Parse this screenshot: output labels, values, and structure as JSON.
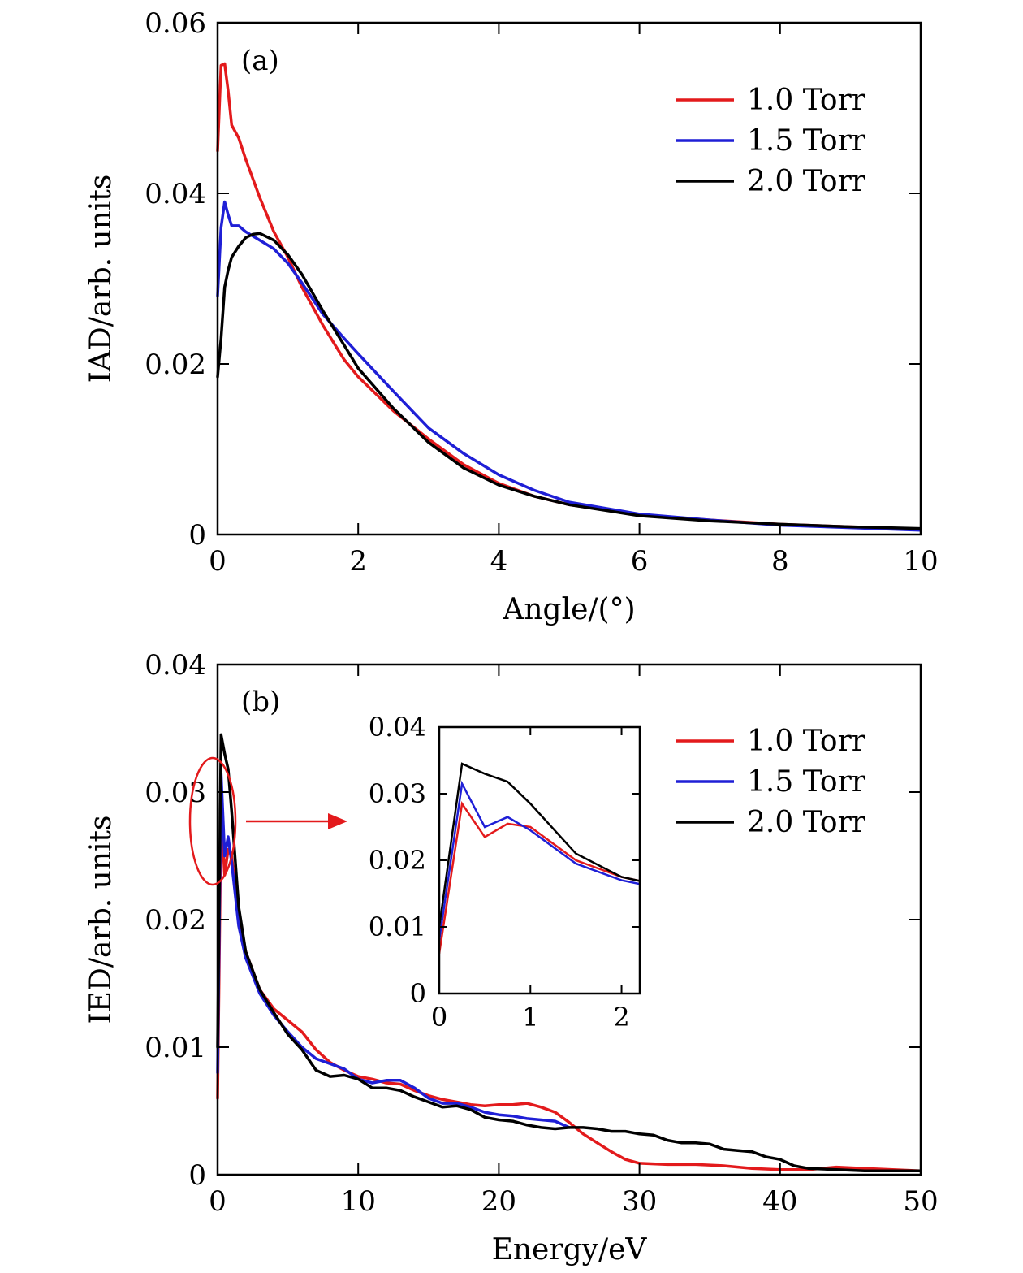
{
  "chart_data": [
    {
      "type": "line",
      "panel": "(a)",
      "xlabel": "Angle/(°)",
      "ylabel": "IAD/arb. units",
      "xlim": [
        0,
        10
      ],
      "ylim": [
        0,
        0.06
      ],
      "xticks": [
        0,
        2,
        4,
        6,
        8,
        10
      ],
      "xtick_labels": [
        "0",
        "2",
        "4",
        "6",
        "8",
        "10"
      ],
      "yticks": [
        0,
        0.02,
        0.04,
        0.06
      ],
      "ytick_labels": [
        "0",
        "0.02",
        "0.04",
        "0.06"
      ],
      "legend_position": "top-right",
      "series": [
        {
          "name": "1.0 Torr",
          "color": "#e31a1c",
          "points": [
            [
              0,
              0.045
            ],
            [
              0.05,
              0.055
            ],
            [
              0.1,
              0.0552
            ],
            [
              0.15,
              0.052
            ],
            [
              0.2,
              0.048
            ],
            [
              0.3,
              0.0465
            ],
            [
              0.4,
              0.044
            ],
            [
              0.6,
              0.0395
            ],
            [
              0.8,
              0.0355
            ],
            [
              1.0,
              0.0325
            ],
            [
              1.2,
              0.029
            ],
            [
              1.5,
              0.0245
            ],
            [
              1.8,
              0.0205
            ],
            [
              2.0,
              0.0185
            ],
            [
              2.5,
              0.0145
            ],
            [
              3.0,
              0.0112
            ],
            [
              3.5,
              0.0082
            ],
            [
              4.0,
              0.006
            ],
            [
              4.5,
              0.0045
            ],
            [
              5.0,
              0.0035
            ],
            [
              6.0,
              0.0023
            ],
            [
              7.0,
              0.0017
            ],
            [
              8.0,
              0.0012
            ],
            [
              9.0,
              0.0009
            ],
            [
              10.0,
              0.0006
            ]
          ]
        },
        {
          "name": "1.5 Torr",
          "color": "#1f1fd6",
          "points": [
            [
              0,
              0.028
            ],
            [
              0.05,
              0.036
            ],
            [
              0.1,
              0.039
            ],
            [
              0.15,
              0.0375
            ],
            [
              0.2,
              0.0362
            ],
            [
              0.3,
              0.0362
            ],
            [
              0.4,
              0.0355
            ],
            [
              0.6,
              0.0345
            ],
            [
              0.8,
              0.0335
            ],
            [
              1.0,
              0.0318
            ],
            [
              1.2,
              0.0295
            ],
            [
              1.5,
              0.0258
            ],
            [
              1.8,
              0.023
            ],
            [
              2.0,
              0.0212
            ],
            [
              2.5,
              0.0168
            ],
            [
              3.0,
              0.0125
            ],
            [
              3.5,
              0.0095
            ],
            [
              4.0,
              0.007
            ],
            [
              4.5,
              0.0052
            ],
            [
              5.0,
              0.0038
            ],
            [
              6.0,
              0.0024
            ],
            [
              7.0,
              0.0017
            ],
            [
              8.0,
              0.0011
            ],
            [
              9.0,
              0.0008
            ],
            [
              10.0,
              0.0005
            ]
          ]
        },
        {
          "name": "2.0 Torr",
          "color": "#000000",
          "points": [
            [
              0,
              0.0185
            ],
            [
              0.05,
              0.023
            ],
            [
              0.1,
              0.029
            ],
            [
              0.15,
              0.031
            ],
            [
              0.2,
              0.0325
            ],
            [
              0.3,
              0.0338
            ],
            [
              0.4,
              0.0348
            ],
            [
              0.5,
              0.0352
            ],
            [
              0.6,
              0.0353
            ],
            [
              0.8,
              0.0345
            ],
            [
              1.0,
              0.0328
            ],
            [
              1.2,
              0.0305
            ],
            [
              1.5,
              0.0262
            ],
            [
              1.8,
              0.0222
            ],
            [
              2.0,
              0.0195
            ],
            [
              2.5,
              0.0148
            ],
            [
              3.0,
              0.0108
            ],
            [
              3.5,
              0.0078
            ],
            [
              4.0,
              0.0058
            ],
            [
              4.5,
              0.0045
            ],
            [
              5.0,
              0.0035
            ],
            [
              6.0,
              0.0022
            ],
            [
              7.0,
              0.0016
            ],
            [
              8.0,
              0.0012
            ],
            [
              9.0,
              0.0009
            ],
            [
              10.0,
              0.0007
            ]
          ]
        }
      ]
    },
    {
      "type": "line",
      "panel": "(b)",
      "xlabel": "Energy/eV",
      "ylabel": "IED/arb. units",
      "xlim": [
        0,
        50
      ],
      "ylim": [
        0,
        0.04
      ],
      "xticks": [
        0,
        10,
        20,
        30,
        40,
        50
      ],
      "xtick_labels": [
        "0",
        "10",
        "20",
        "30",
        "40",
        "50"
      ],
      "yticks": [
        0,
        0.01,
        0.02,
        0.03,
        0.04
      ],
      "ytick_labels": [
        "0",
        "0.01",
        "0.02",
        "0.03",
        "0.04"
      ],
      "legend_position": "top-right",
      "series": [
        {
          "name": "1.0 Torr",
          "color": "#e31a1c",
          "points": [
            [
              0,
              0.006
            ],
            [
              0.25,
              0.0285
            ],
            [
              0.5,
              0.0235
            ],
            [
              0.75,
              0.0255
            ],
            [
              1,
              0.025
            ],
            [
              1.5,
              0.02
            ],
            [
              2,
              0.0175
            ],
            [
              3,
              0.0145
            ],
            [
              4,
              0.013
            ],
            [
              5,
              0.0121
            ],
            [
              6,
              0.0112
            ],
            [
              7,
              0.0098
            ],
            [
              8,
              0.0088
            ],
            [
              9,
              0.0082
            ],
            [
              10,
              0.0077
            ],
            [
              11,
              0.0075
            ],
            [
              12,
              0.0072
            ],
            [
              13,
              0.0071
            ],
            [
              14,
              0.0066
            ],
            [
              15,
              0.0062
            ],
            [
              16,
              0.0059
            ],
            [
              17,
              0.0057
            ],
            [
              18,
              0.0055
            ],
            [
              19,
              0.0054
            ],
            [
              20,
              0.0055
            ],
            [
              21,
              0.0055
            ],
            [
              22,
              0.0056
            ],
            [
              23,
              0.0053
            ],
            [
              24,
              0.0049
            ],
            [
              25,
              0.0041
            ],
            [
              26,
              0.0032
            ],
            [
              27,
              0.0025
            ],
            [
              28,
              0.0018
            ],
            [
              29,
              0.0012
            ],
            [
              30,
              0.0009
            ],
            [
              32,
              0.0008
            ],
            [
              34,
              0.0008
            ],
            [
              36,
              0.0007
            ],
            [
              38,
              0.0005
            ],
            [
              40,
              0.0004
            ],
            [
              42,
              0.0004
            ],
            [
              44,
              0.0006
            ],
            [
              46,
              0.0005
            ],
            [
              48,
              0.0004
            ],
            [
              50,
              0.0003
            ]
          ]
        },
        {
          "name": "1.5 Torr",
          "color": "#1f1fd6",
          "points": [
            [
              0,
              0.008
            ],
            [
              0.25,
              0.0315
            ],
            [
              0.5,
              0.025
            ],
            [
              0.75,
              0.0265
            ],
            [
              1,
              0.0245
            ],
            [
              1.5,
              0.0195
            ],
            [
              2,
              0.017
            ],
            [
              3,
              0.0142
            ],
            [
              4,
              0.0125
            ],
            [
              5,
              0.0112
            ],
            [
              6,
              0.01
            ],
            [
              7,
              0.0091
            ],
            [
              8,
              0.0087
            ],
            [
              9,
              0.0083
            ],
            [
              10,
              0.0075
            ],
            [
              11,
              0.0072
            ],
            [
              12,
              0.0074
            ],
            [
              13,
              0.0074
            ],
            [
              14,
              0.0068
            ],
            [
              15,
              0.006
            ],
            [
              16,
              0.0056
            ],
            [
              17,
              0.0056
            ],
            [
              18,
              0.0053
            ],
            [
              19,
              0.0049
            ],
            [
              20,
              0.0047
            ],
            [
              21,
              0.0046
            ],
            [
              22,
              0.0044
            ],
            [
              23,
              0.0043
            ],
            [
              24,
              0.0042
            ],
            [
              25,
              0.0037
            ]
          ]
        },
        {
          "name": "2.0 Torr",
          "color": "#000000",
          "points": [
            [
              0,
              0.01
            ],
            [
              0.25,
              0.0345
            ],
            [
              0.5,
              0.033
            ],
            [
              0.75,
              0.0318
            ],
            [
              1,
              0.0285
            ],
            [
              1.5,
              0.021
            ],
            [
              2,
              0.0175
            ],
            [
              3,
              0.0145
            ],
            [
              4,
              0.0127
            ],
            [
              5,
              0.011
            ],
            [
              6,
              0.0098
            ],
            [
              7,
              0.0082
            ],
            [
              8,
              0.0077
            ],
            [
              9,
              0.0078
            ],
            [
              10,
              0.0075
            ],
            [
              11,
              0.0068
            ],
            [
              12,
              0.0068
            ],
            [
              13,
              0.0066
            ],
            [
              14,
              0.0061
            ],
            [
              15,
              0.0057
            ],
            [
              16,
              0.0053
            ],
            [
              17,
              0.0054
            ],
            [
              18,
              0.0051
            ],
            [
              19,
              0.0045
            ],
            [
              20,
              0.0043
            ],
            [
              21,
              0.0042
            ],
            [
              22,
              0.0039
            ],
            [
              23,
              0.0037
            ],
            [
              24,
              0.0036
            ],
            [
              25,
              0.0037
            ],
            [
              26,
              0.0037
            ],
            [
              27,
              0.0036
            ],
            [
              28,
              0.0034
            ],
            [
              29,
              0.0034
            ],
            [
              30,
              0.0032
            ],
            [
              31,
              0.0031
            ],
            [
              32,
              0.0027
            ],
            [
              33,
              0.0025
            ],
            [
              34,
              0.0025
            ],
            [
              35,
              0.0024
            ],
            [
              36,
              0.002
            ],
            [
              37,
              0.0019
            ],
            [
              38,
              0.0018
            ],
            [
              39,
              0.0014
            ],
            [
              40,
              0.0012
            ],
            [
              41,
              0.0007
            ],
            [
              42,
              0.0005
            ],
            [
              44,
              0.0004
            ],
            [
              46,
              0.0003
            ],
            [
              48,
              0.0003
            ],
            [
              50,
              0.0003
            ]
          ]
        }
      ],
      "inset": {
        "xlim": [
          0,
          2.2
        ],
        "ylim": [
          0,
          0.04
        ],
        "xticks": [
          0,
          1,
          2
        ],
        "xtick_labels": [
          "0",
          "1",
          "2"
        ],
        "yticks": [
          0,
          0.01,
          0.02,
          0.03,
          0.04
        ],
        "ytick_labels": [
          "0",
          "0.01",
          "0.02",
          "0.03",
          "0.04"
        ],
        "zoom_region": {
          "x": [
            0,
            1
          ],
          "y": [
            0.023,
            0.032
          ]
        }
      }
    }
  ]
}
